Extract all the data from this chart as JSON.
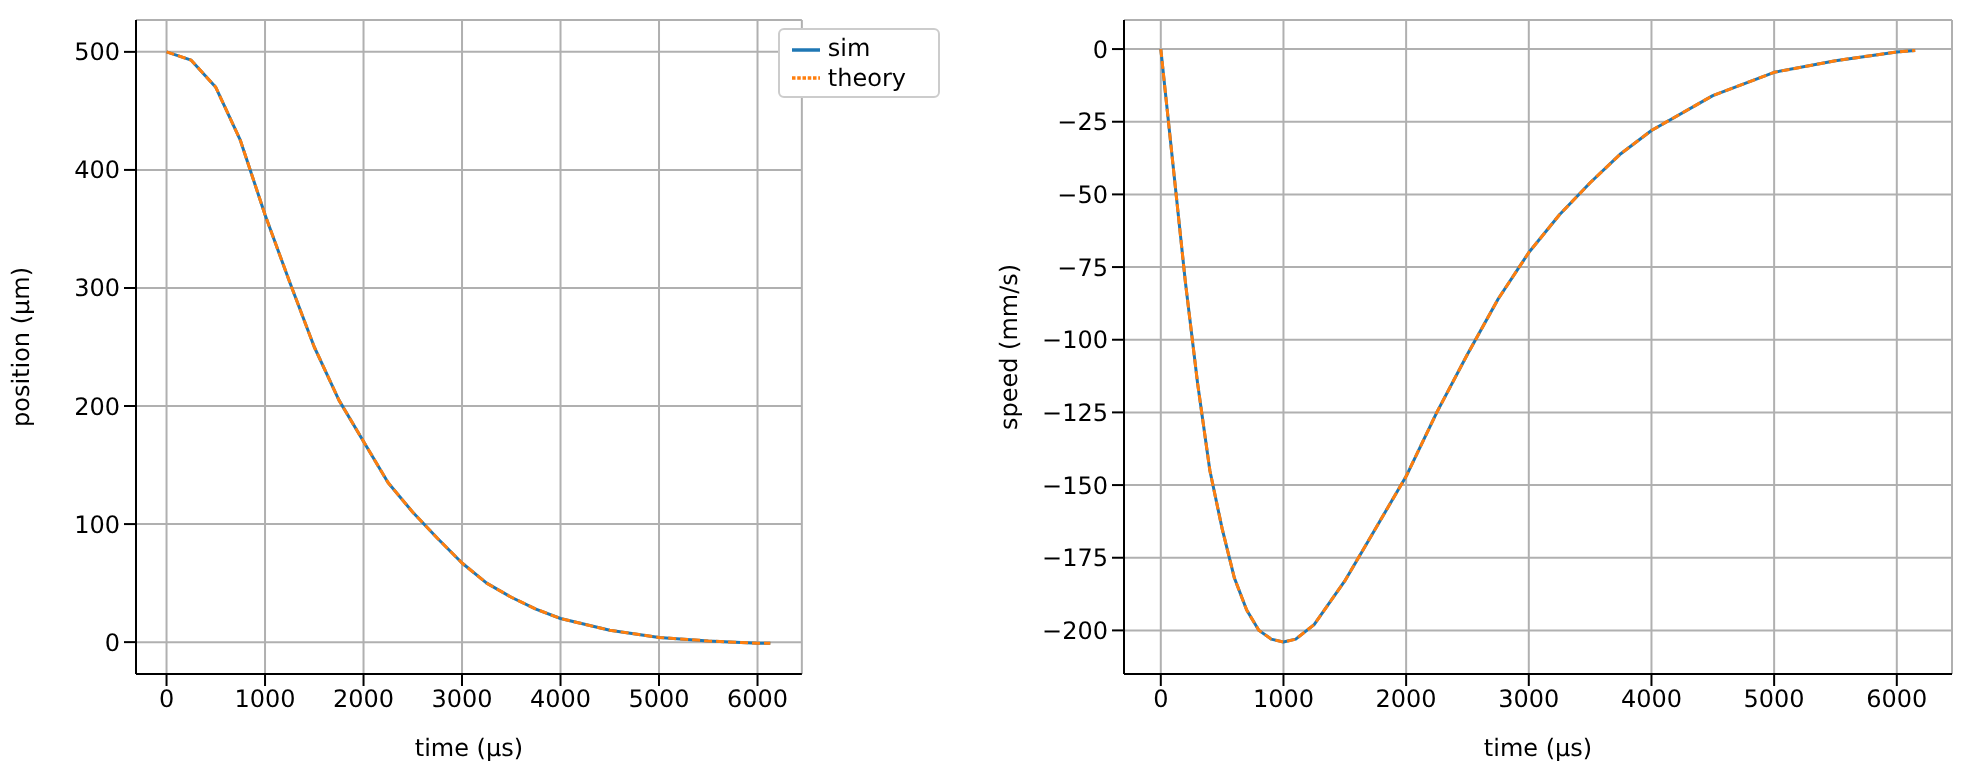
{
  "chart_data": [
    {
      "type": "line",
      "xlabel": "time (µs)",
      "ylabel": "position (µm)",
      "x": [
        0,
        250,
        500,
        750,
        1000,
        1250,
        1500,
        1750,
        2000,
        2250,
        2500,
        2750,
        3000,
        3250,
        3500,
        3750,
        4000,
        4500,
        5000,
        5500,
        6000,
        6130
      ],
      "xlim": [
        -310,
        6450
      ],
      "ylim": [
        -27,
        527
      ],
      "xticks": [
        0,
        1000,
        2000,
        3000,
        4000,
        5000,
        6000
      ],
      "yticks": [
        0,
        100,
        200,
        300,
        400,
        500
      ],
      "grid": true,
      "legend": "top right",
      "series": [
        {
          "name": "sim",
          "color": "#1f77b4",
          "line_style": "solid",
          "values": [
            500,
            493,
            470,
            425,
            362,
            305,
            250,
            205,
            170,
            135,
            110,
            88,
            67,
            50,
            38,
            28,
            20,
            10,
            4,
            1,
            -1,
            -1
          ]
        },
        {
          "name": "theory",
          "color": "#ff7f0e",
          "line_style": "dashed",
          "values": [
            500,
            493,
            470,
            425,
            362,
            305,
            250,
            205,
            170,
            135,
            110,
            88,
            67,
            50,
            38,
            28,
            20,
            10,
            4,
            1,
            -1,
            -1
          ]
        }
      ]
    },
    {
      "type": "line",
      "xlabel": "time (µs)",
      "ylabel": "speed (mm/s)",
      "x": [
        0,
        100,
        200,
        300,
        400,
        500,
        600,
        700,
        800,
        900,
        1000,
        1100,
        1250,
        1500,
        1750,
        2000,
        2250,
        2500,
        2750,
        3000,
        3250,
        3500,
        3750,
        4000,
        4500,
        5000,
        5500,
        6000,
        6150
      ],
      "xlim": [
        -300,
        6450
      ],
      "ylim": [
        -215,
        10
      ],
      "xticks": [
        0,
        1000,
        2000,
        3000,
        4000,
        5000,
        6000
      ],
      "yticks": [
        -200,
        -175,
        -150,
        -125,
        -100,
        -75,
        -50,
        -25,
        0
      ],
      "grid": true,
      "series": [
        {
          "color": "#1f77b4",
          "line_style": "solid",
          "values": [
            0,
            -40,
            -80,
            -115,
            -145,
            -165,
            -182,
            -193,
            -200,
            -203,
            -204,
            -203,
            -198,
            -183,
            -165,
            -147,
            -125,
            -105,
            -86,
            -70,
            -57,
            -46,
            -36,
            -28,
            -16,
            -8,
            -4,
            -1,
            -0.5
          ]
        },
        {
          "color": "#ff7f0e",
          "line_style": "dashed",
          "values": [
            0,
            -40,
            -80,
            -115,
            -145,
            -165,
            -182,
            -193,
            -200,
            -203,
            -204,
            -203,
            -198,
            -183,
            -165,
            -147,
            -125,
            -105,
            -86,
            -70,
            -57,
            -46,
            -36,
            -28,
            -16,
            -8,
            -4,
            -1,
            -0.5
          ]
        }
      ]
    }
  ]
}
